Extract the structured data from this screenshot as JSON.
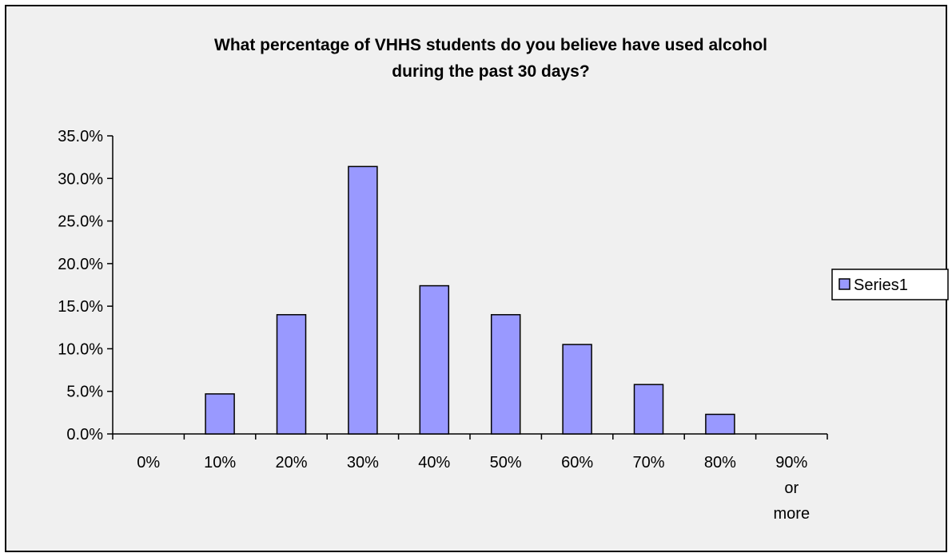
{
  "chart_data": {
    "type": "bar",
    "title": "What percentage of VHHS students do you believe have used alcohol during the past 30 days?",
    "title_lines": [
      "What percentage of VHHS students do you believe have used alcohol",
      "during the past 30 days?"
    ],
    "xlabel": "",
    "ylabel": "",
    "categories": [
      "0%",
      "10%",
      "20%",
      "30%",
      "40%",
      "50%",
      "60%",
      "70%",
      "80%",
      "90% or more"
    ],
    "category_label_lines": [
      [
        "0%"
      ],
      [
        "10%"
      ],
      [
        "20%"
      ],
      [
        "30%"
      ],
      [
        "40%"
      ],
      [
        "50%"
      ],
      [
        "60%"
      ],
      [
        "70%"
      ],
      [
        "80%"
      ],
      [
        "90%",
        "or",
        "more"
      ]
    ],
    "series": [
      {
        "name": "Series1",
        "values": [
          0.0,
          4.7,
          14.0,
          31.4,
          17.4,
          14.0,
          10.5,
          5.8,
          2.3,
          0.0
        ],
        "color": "#9999ff"
      }
    ],
    "ylim": [
      0,
      35
    ],
    "yticks": [
      0,
      5,
      10,
      15,
      20,
      25,
      30,
      35
    ],
    "ytick_labels": [
      "0.0%",
      "5.0%",
      "10.0%",
      "15.0%",
      "20.0%",
      "25.0%",
      "30.0%",
      "35.0%"
    ],
    "grid": false,
    "legend_position": "right",
    "colors": {
      "background": "#f0f0f0",
      "bar_fill": "#9999ff",
      "bar_stroke": "#000000",
      "axis": "#000000"
    }
  }
}
